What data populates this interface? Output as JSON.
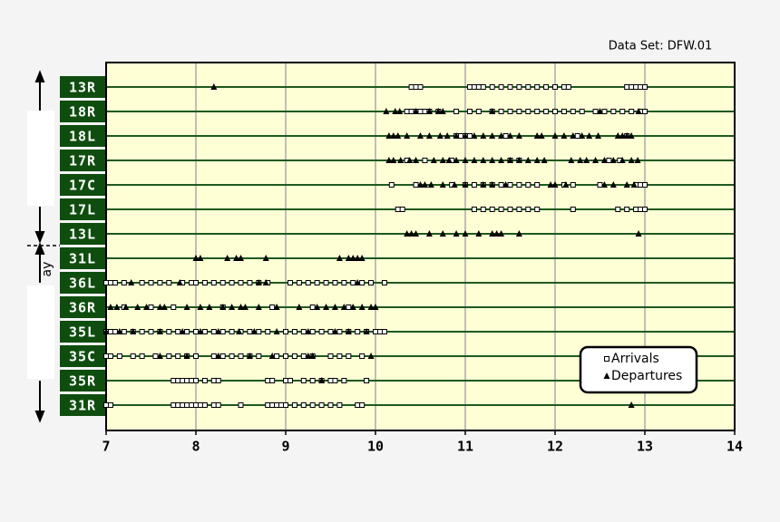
{
  "chart_data": {
    "type": "event-timeline",
    "title": "Data Set: DFW.01",
    "side_label": "ay",
    "categories": [
      "13R",
      "18R",
      "18L",
      "17R",
      "17C",
      "17L",
      "13L",
      "31L",
      "36L",
      "36R",
      "35L",
      "35C",
      "35R",
      "31R"
    ],
    "xlim": [
      7,
      14
    ],
    "xticks": [
      7,
      8,
      9,
      10,
      11,
      12,
      13,
      14
    ],
    "grid": true,
    "legend": "bottom-right",
    "series": [
      {
        "name": "Arrivals",
        "marker": "square",
        "color": "#000000",
        "values": [
          [
            10.4,
            10.45,
            10.5,
            11.05,
            11.1,
            11.15,
            11.2,
            11.3,
            11.4,
            11.5,
            11.6,
            11.7,
            11.8,
            11.9,
            12.0,
            12.1,
            12.15,
            12.8,
            12.85,
            12.9,
            12.95,
            13.0
          ],
          [
            10.35,
            10.4,
            10.45,
            10.5,
            10.55,
            10.6,
            10.7,
            10.9,
            11.05,
            11.15,
            11.3,
            11.4,
            11.5,
            11.6,
            11.7,
            11.8,
            11.9,
            12.0,
            12.1,
            12.2,
            12.3,
            12.45,
            12.55,
            12.65,
            12.75,
            12.85,
            12.95,
            13.0
          ],
          [
            10.9,
            10.95,
            11.0,
            11.05,
            11.45,
            12.25,
            12.8
          ],
          [
            10.35,
            10.55,
            10.85,
            11.5,
            11.6,
            12.6,
            12.72
          ],
          [
            10.18,
            10.45,
            10.85,
            11.0,
            11.1,
            11.2,
            11.3,
            11.4,
            11.5,
            11.6,
            11.7,
            11.8,
            12.1,
            12.2,
            12.5,
            12.9,
            12.95,
            13.0
          ],
          [
            10.25,
            10.3,
            11.1,
            11.2,
            11.3,
            11.4,
            11.5,
            11.6,
            11.7,
            11.8,
            12.2,
            12.7,
            12.8,
            12.9,
            12.95,
            13.0
          ],
          [],
          [],
          [
            7.0,
            7.05,
            7.1,
            7.2,
            7.4,
            7.5,
            7.6,
            7.7,
            7.85,
            7.95,
            8.0,
            8.1,
            8.2,
            8.3,
            8.4,
            8.5,
            8.6,
            8.7,
            8.8,
            9.05,
            9.15,
            9.25,
            9.35,
            9.45,
            9.55,
            9.65,
            9.75,
            9.85,
            9.95,
            10.1
          ],
          [
            7.2,
            7.5,
            7.75,
            8.3,
            8.85,
            9.3,
            9.7
          ],
          [
            7.0,
            7.05,
            7.1,
            7.2,
            7.3,
            7.4,
            7.5,
            7.6,
            7.7,
            7.8,
            7.9,
            8.0,
            8.1,
            8.2,
            8.3,
            8.4,
            8.5,
            8.6,
            8.7,
            8.8,
            9.0,
            9.1,
            9.2,
            9.3,
            9.4,
            9.5,
            9.6,
            9.7,
            9.8,
            9.9,
            10.0,
            10.05,
            10.1
          ],
          [
            7.0,
            7.05,
            7.15,
            7.3,
            7.4,
            7.55,
            7.7,
            7.8,
            7.9,
            8.0,
            8.2,
            8.3,
            8.4,
            8.5,
            8.6,
            8.7,
            8.9,
            9.0,
            9.1,
            9.2,
            9.3,
            9.5,
            9.6,
            9.7,
            9.85
          ],
          [
            7.75,
            7.8,
            7.85,
            7.9,
            7.95,
            8.0,
            8.1,
            8.2,
            8.25,
            8.8,
            8.85,
            9.0,
            9.05,
            9.2,
            9.3,
            9.4,
            9.5,
            9.55,
            9.65,
            9.9
          ],
          [
            7.0,
            7.05,
            7.75,
            7.8,
            7.85,
            7.9,
            7.95,
            8.0,
            8.05,
            8.1,
            8.2,
            8.25,
            8.5,
            8.8,
            8.85,
            8.9,
            8.95,
            9.0,
            9.1,
            9.2,
            9.3,
            9.4,
            9.5,
            9.6,
            9.8,
            9.85
          ]
        ]
      },
      {
        "name": "Departures",
        "marker": "triangle",
        "color": "#000000",
        "values": [
          [
            8.2
          ],
          [
            10.12,
            10.22,
            10.27,
            10.45,
            10.6,
            10.7,
            10.75,
            11.3,
            12.5,
            12.93
          ],
          [
            10.15,
            10.2,
            10.25,
            10.35,
            10.5,
            10.6,
            10.72,
            10.8,
            10.9,
            11.0,
            11.1,
            11.2,
            11.3,
            11.4,
            11.5,
            11.6,
            11.8,
            11.85,
            12.0,
            12.1,
            12.2,
            12.3,
            12.38,
            12.48,
            12.7,
            12.75,
            12.8,
            12.85
          ],
          [
            10.15,
            10.2,
            10.28,
            10.38,
            10.45,
            10.65,
            10.75,
            10.82,
            10.9,
            11.0,
            11.1,
            11.2,
            11.3,
            11.4,
            11.5,
            11.6,
            11.7,
            11.8,
            11.88,
            12.18,
            12.28,
            12.35,
            12.45,
            12.55,
            12.65,
            12.75,
            12.85,
            12.92
          ],
          [
            10.5,
            10.55,
            10.62,
            10.75,
            10.88,
            11.0,
            11.2,
            11.3,
            11.45,
            11.95,
            12.0,
            12.12,
            12.55,
            12.65,
            12.8,
            12.88
          ],
          [],
          [
            10.35,
            10.4,
            10.45,
            10.6,
            10.75,
            10.9,
            11.0,
            11.15,
            11.3,
            11.35,
            11.4,
            11.6,
            12.93
          ],
          [
            8.0,
            8.05,
            8.35,
            8.45,
            8.5,
            8.78,
            9.6,
            9.7,
            9.75,
            9.8,
            9.85
          ],
          [
            7.28,
            7.82,
            8.7,
            8.78,
            9.8
          ],
          [
            7.05,
            7.12,
            7.22,
            7.35,
            7.45,
            7.6,
            7.65,
            7.9,
            8.05,
            8.15,
            8.3,
            8.4,
            8.5,
            8.55,
            8.7,
            8.9,
            9.15,
            9.35,
            9.45,
            9.55,
            9.65,
            9.75,
            9.85,
            9.95,
            10.0
          ],
          [
            7.0,
            7.15,
            7.3,
            7.6,
            7.85,
            8.05,
            8.25,
            8.48,
            8.65,
            8.9,
            9.25,
            9.55,
            9.7,
            9.9
          ],
          [
            7.6,
            7.9,
            8.25,
            8.6,
            8.85,
            9.25,
            9.3,
            9.95
          ],
          [
            9.4
          ],
          [
            12.85
          ]
        ]
      }
    ]
  }
}
